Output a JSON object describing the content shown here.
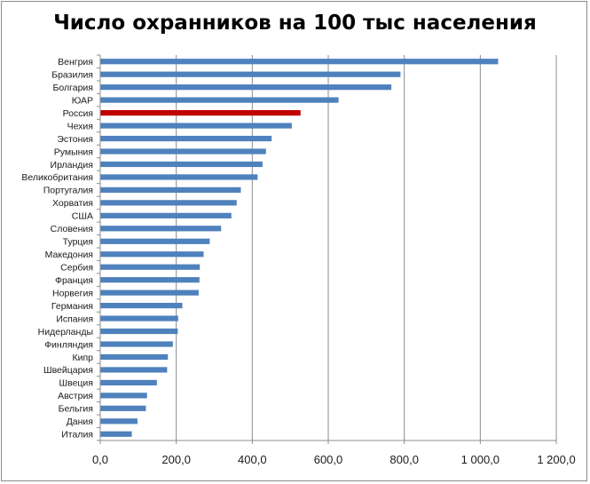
{
  "chart_data": {
    "type": "bar",
    "orientation": "horizontal",
    "title": "Число охранников на 100 тыс населения",
    "categories": [
      "Венгрия",
      "Бразилия",
      "Болгария",
      "ЮАР",
      "Россия",
      "Чехия",
      "Эстония",
      "Румыния",
      "Ирландия",
      "Великобритания",
      "Португалия",
      "Хорватия",
      "США",
      "Словения",
      "Турция",
      "Македония",
      "Сербия",
      "Франция",
      "Норвегия",
      "Германия",
      "Испания",
      "Нидерланды",
      "Финляндия",
      "Кипр",
      "Швейцария",
      "Швеция",
      "Австрия",
      "Бельгия",
      "Дания",
      "Италия"
    ],
    "values": [
      1047,
      790,
      766,
      627,
      527,
      504,
      451,
      436,
      427,
      414,
      370,
      359,
      345,
      318,
      288,
      272,
      262,
      261,
      259,
      216,
      205,
      204,
      191,
      178,
      176,
      149,
      123,
      120,
      98,
      83
    ],
    "highlight_category": "Россия",
    "x_ticks": [
      "0,0",
      "200,0",
      "400,0",
      "600,0",
      "800,0",
      "1 000,0",
      "1 200,0"
    ],
    "x_tick_values": [
      0,
      200,
      400,
      600,
      800,
      1000,
      1200
    ],
    "xlim": [
      0,
      1200
    ],
    "grid": "vertical",
    "legend": "none",
    "colors": {
      "bar": "#4f81bd",
      "highlight": "#c00000",
      "grid": "#8c8c8c",
      "axis": "#8c8c8c"
    }
  }
}
